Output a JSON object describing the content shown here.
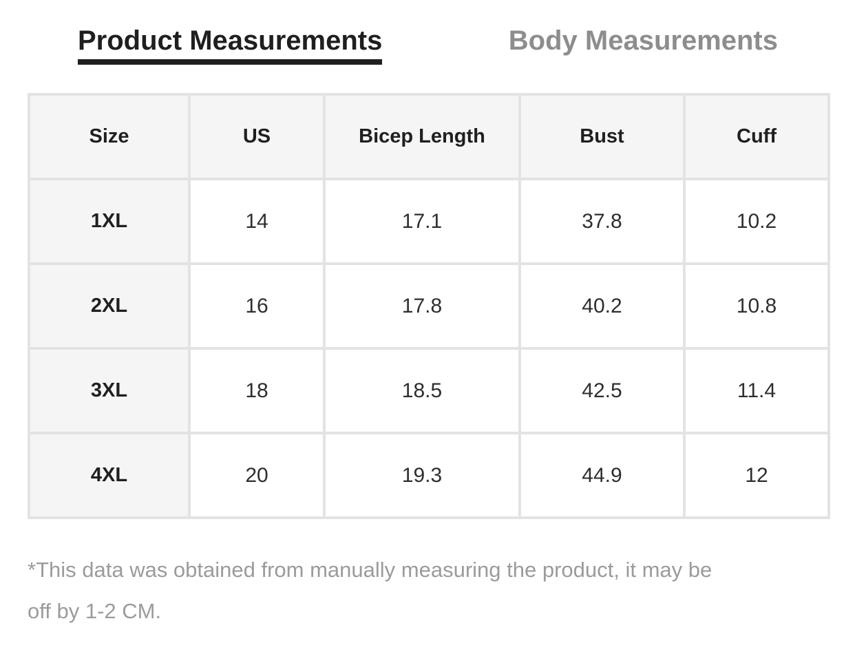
{
  "tabs": {
    "product_label": "Product Measurements",
    "body_label": "Body Measurements"
  },
  "table": {
    "columns": [
      "Size",
      "US",
      "Bicep Length",
      "Bust",
      "Cuff"
    ],
    "rows": [
      {
        "size": "1XL",
        "us": "14",
        "bicep_length": "17.1",
        "bust": "37.8",
        "cuff": "10.2"
      },
      {
        "size": "2XL",
        "us": "16",
        "bicep_length": "17.8",
        "bust": "40.2",
        "cuff": "10.8"
      },
      {
        "size": "3XL",
        "us": "18",
        "bicep_length": "18.5",
        "bust": "42.5",
        "cuff": "11.4"
      },
      {
        "size": "4XL",
        "us": "20",
        "bicep_length": "19.3",
        "bust": "44.9",
        "cuff": "12"
      }
    ]
  },
  "note": {
    "line1": "*This data was obtained from manually measuring the product, it may be",
    "line2": "off by 1-2 CM."
  },
  "colors": {
    "active_tab_text": "#1f1f1f",
    "active_tab_underline": "#1f1f1f",
    "inactive_tab_text": "#8d8d8d",
    "header_cell_bg": "#f5f5f5",
    "table_border": "#e3e3e3",
    "data_text": "#2e2e2e",
    "note_text": "#9b9b9b"
  }
}
